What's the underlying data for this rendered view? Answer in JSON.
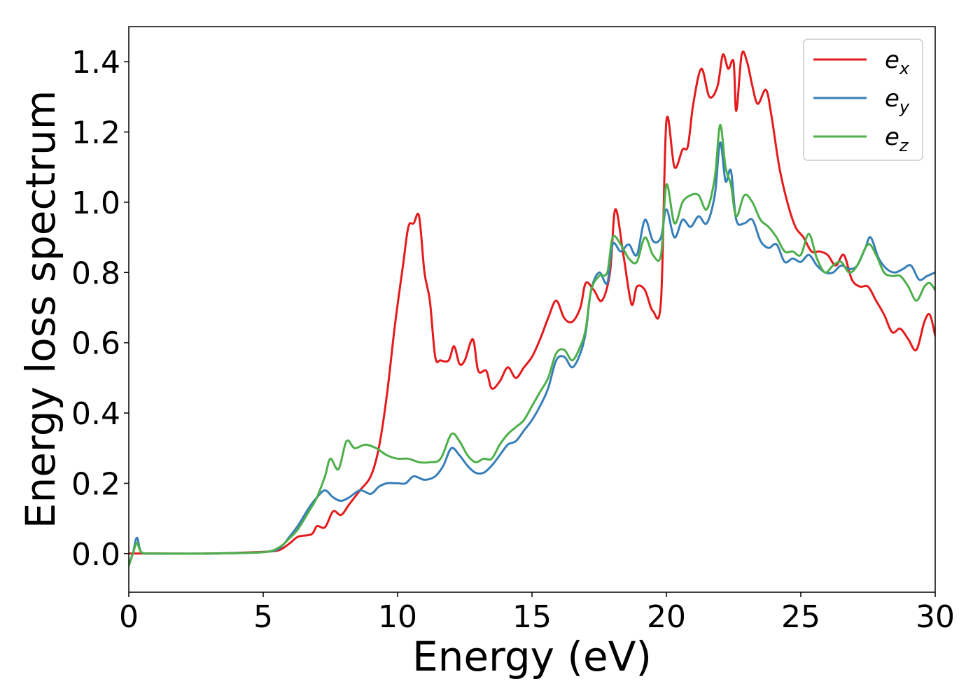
{
  "chart_data": {
    "type": "line",
    "xlabel": "Energy (eV)",
    "ylabel": "Energy loss spectrum",
    "xlim": [
      0,
      30
    ],
    "ylim": [
      -0.11,
      1.5
    ],
    "x_ticks": [
      "0",
      "5",
      "10",
      "15",
      "20",
      "25",
      "30"
    ],
    "y_ticks": [
      "0.0",
      "0.2",
      "0.4",
      "0.6",
      "0.8",
      "1.0",
      "1.2",
      "1.4"
    ],
    "x_tick_values": [
      0,
      5,
      10,
      15,
      20,
      25,
      30
    ],
    "y_tick_values": [
      0.0,
      0.2,
      0.4,
      0.6,
      0.8,
      1.0,
      1.2,
      1.4
    ],
    "grid": false,
    "legend_position": "top-right",
    "series": [
      {
        "name": "e_x",
        "label_main": "e",
        "label_sub": "x",
        "color": "#e41a1c",
        "points": [
          [
            0,
            0.0
          ],
          [
            0.3,
            0.0
          ],
          [
            1,
            0.0
          ],
          [
            3,
            0.0
          ],
          [
            5,
            0.005
          ],
          [
            5.6,
            0.01
          ],
          [
            6,
            0.03
          ],
          [
            6.3,
            0.048
          ],
          [
            6.8,
            0.055
          ],
          [
            7.0,
            0.078
          ],
          [
            7.3,
            0.075
          ],
          [
            7.6,
            0.12
          ],
          [
            7.9,
            0.11
          ],
          [
            8.2,
            0.14
          ],
          [
            8.6,
            0.18
          ],
          [
            9.0,
            0.22
          ],
          [
            9.3,
            0.3
          ],
          [
            9.6,
            0.45
          ],
          [
            9.9,
            0.65
          ],
          [
            10.2,
            0.82
          ],
          [
            10.4,
            0.93
          ],
          [
            10.6,
            0.94
          ],
          [
            10.8,
            0.96
          ],
          [
            11.0,
            0.8
          ],
          [
            11.2,
            0.72
          ],
          [
            11.4,
            0.56
          ],
          [
            11.6,
            0.55
          ],
          [
            11.9,
            0.55
          ],
          [
            12.1,
            0.59
          ],
          [
            12.3,
            0.54
          ],
          [
            12.5,
            0.55
          ],
          [
            12.8,
            0.61
          ],
          [
            13.0,
            0.52
          ],
          [
            13.3,
            0.52
          ],
          [
            13.5,
            0.47
          ],
          [
            13.8,
            0.49
          ],
          [
            14.1,
            0.53
          ],
          [
            14.4,
            0.5
          ],
          [
            14.7,
            0.53
          ],
          [
            15.0,
            0.56
          ],
          [
            15.3,
            0.61
          ],
          [
            15.6,
            0.67
          ],
          [
            15.9,
            0.72
          ],
          [
            16.2,
            0.67
          ],
          [
            16.5,
            0.66
          ],
          [
            16.8,
            0.7
          ],
          [
            17.0,
            0.77
          ],
          [
            17.3,
            0.75
          ],
          [
            17.6,
            0.72
          ],
          [
            17.9,
            0.8
          ],
          [
            18.1,
            0.98
          ],
          [
            18.4,
            0.85
          ],
          [
            18.7,
            0.71
          ],
          [
            18.9,
            0.76
          ],
          [
            19.2,
            0.75
          ],
          [
            19.5,
            0.69
          ],
          [
            19.8,
            0.72
          ],
          [
            20.0,
            1.23
          ],
          [
            20.3,
            1.1
          ],
          [
            20.6,
            1.15
          ],
          [
            20.8,
            1.16
          ],
          [
            21.0,
            1.28
          ],
          [
            21.3,
            1.38
          ],
          [
            21.6,
            1.3
          ],
          [
            21.9,
            1.33
          ],
          [
            22.1,
            1.42
          ],
          [
            22.3,
            1.38
          ],
          [
            22.5,
            1.4
          ],
          [
            22.6,
            1.26
          ],
          [
            22.8,
            1.42
          ],
          [
            23.0,
            1.4
          ],
          [
            23.2,
            1.33
          ],
          [
            23.4,
            1.28
          ],
          [
            23.7,
            1.32
          ],
          [
            23.9,
            1.25
          ],
          [
            24.2,
            1.1
          ],
          [
            24.5,
            1.0
          ],
          [
            24.8,
            0.93
          ],
          [
            25.1,
            0.9
          ],
          [
            25.4,
            0.86
          ],
          [
            25.7,
            0.86
          ],
          [
            26.0,
            0.85
          ],
          [
            26.3,
            0.82
          ],
          [
            26.6,
            0.85
          ],
          [
            26.9,
            0.78
          ],
          [
            27.2,
            0.76
          ],
          [
            27.5,
            0.76
          ],
          [
            27.8,
            0.72
          ],
          [
            28.1,
            0.68
          ],
          [
            28.4,
            0.63
          ],
          [
            28.7,
            0.64
          ],
          [
            29.0,
            0.61
          ],
          [
            29.3,
            0.58
          ],
          [
            29.6,
            0.66
          ],
          [
            29.8,
            0.68
          ],
          [
            30.0,
            0.62
          ]
        ]
      },
      {
        "name": "e_y",
        "label_main": "e",
        "label_sub": "y",
        "color": "#377eb8",
        "points": [
          [
            0,
            -0.03
          ],
          [
            0.15,
            0.0
          ],
          [
            0.3,
            0.045
          ],
          [
            0.45,
            0.005
          ],
          [
            0.7,
            0.0
          ],
          [
            1,
            0.0
          ],
          [
            3,
            0.0
          ],
          [
            5,
            0.004
          ],
          [
            5.6,
            0.015
          ],
          [
            6,
            0.05
          ],
          [
            6.3,
            0.08
          ],
          [
            6.7,
            0.13
          ],
          [
            7.0,
            0.16
          ],
          [
            7.3,
            0.18
          ],
          [
            7.6,
            0.16
          ],
          [
            7.9,
            0.15
          ],
          [
            8.2,
            0.16
          ],
          [
            8.6,
            0.18
          ],
          [
            9.0,
            0.17
          ],
          [
            9.3,
            0.19
          ],
          [
            9.6,
            0.2
          ],
          [
            10.0,
            0.2
          ],
          [
            10.3,
            0.2
          ],
          [
            10.6,
            0.22
          ],
          [
            11.0,
            0.21
          ],
          [
            11.4,
            0.22
          ],
          [
            11.7,
            0.25
          ],
          [
            12.0,
            0.3
          ],
          [
            12.3,
            0.28
          ],
          [
            12.6,
            0.25
          ],
          [
            12.9,
            0.23
          ],
          [
            13.2,
            0.23
          ],
          [
            13.5,
            0.25
          ],
          [
            13.8,
            0.28
          ],
          [
            14.1,
            0.31
          ],
          [
            14.4,
            0.32
          ],
          [
            14.7,
            0.35
          ],
          [
            15.0,
            0.38
          ],
          [
            15.3,
            0.42
          ],
          [
            15.6,
            0.47
          ],
          [
            15.9,
            0.55
          ],
          [
            16.2,
            0.56
          ],
          [
            16.5,
            0.53
          ],
          [
            16.8,
            0.57
          ],
          [
            17.0,
            0.63
          ],
          [
            17.2,
            0.75
          ],
          [
            17.5,
            0.8
          ],
          [
            17.8,
            0.77
          ],
          [
            18.0,
            0.88
          ],
          [
            18.3,
            0.86
          ],
          [
            18.6,
            0.88
          ],
          [
            18.9,
            0.85
          ],
          [
            19.2,
            0.95
          ],
          [
            19.5,
            0.89
          ],
          [
            19.8,
            0.9
          ],
          [
            20.0,
            0.98
          ],
          [
            20.3,
            0.9
          ],
          [
            20.6,
            0.95
          ],
          [
            20.9,
            0.93
          ],
          [
            21.2,
            0.96
          ],
          [
            21.5,
            0.94
          ],
          [
            21.8,
            1.02
          ],
          [
            22.0,
            1.17
          ],
          [
            22.2,
            1.06
          ],
          [
            22.4,
            1.09
          ],
          [
            22.6,
            0.95
          ],
          [
            22.9,
            0.94
          ],
          [
            23.2,
            0.95
          ],
          [
            23.5,
            0.89
          ],
          [
            23.8,
            0.87
          ],
          [
            24.1,
            0.88
          ],
          [
            24.4,
            0.83
          ],
          [
            24.7,
            0.84
          ],
          [
            25.0,
            0.83
          ],
          [
            25.3,
            0.85
          ],
          [
            25.6,
            0.82
          ],
          [
            25.9,
            0.8
          ],
          [
            26.2,
            0.8
          ],
          [
            26.5,
            0.82
          ],
          [
            26.8,
            0.81
          ],
          [
            27.1,
            0.82
          ],
          [
            27.4,
            0.87
          ],
          [
            27.6,
            0.9
          ],
          [
            27.9,
            0.84
          ],
          [
            28.2,
            0.81
          ],
          [
            28.5,
            0.8
          ],
          [
            28.8,
            0.81
          ],
          [
            29.1,
            0.82
          ],
          [
            29.4,
            0.78
          ],
          [
            29.7,
            0.79
          ],
          [
            30.0,
            0.8
          ]
        ]
      },
      {
        "name": "e_z",
        "label_main": "e",
        "label_sub": "z",
        "color": "#4daf4a",
        "points": [
          [
            0,
            -0.035
          ],
          [
            0.15,
            0.0
          ],
          [
            0.3,
            0.03
          ],
          [
            0.45,
            0.005
          ],
          [
            0.7,
            0.0
          ],
          [
            1,
            0.0
          ],
          [
            3,
            0.0
          ],
          [
            5,
            0.004
          ],
          [
            5.6,
            0.018
          ],
          [
            6,
            0.045
          ],
          [
            6.3,
            0.07
          ],
          [
            6.7,
            0.12
          ],
          [
            7.0,
            0.16
          ],
          [
            7.3,
            0.22
          ],
          [
            7.5,
            0.27
          ],
          [
            7.8,
            0.24
          ],
          [
            8.1,
            0.32
          ],
          [
            8.4,
            0.3
          ],
          [
            8.8,
            0.31
          ],
          [
            9.2,
            0.3
          ],
          [
            9.6,
            0.28
          ],
          [
            10.0,
            0.27
          ],
          [
            10.4,
            0.27
          ],
          [
            10.8,
            0.26
          ],
          [
            11.2,
            0.26
          ],
          [
            11.6,
            0.27
          ],
          [
            12.0,
            0.34
          ],
          [
            12.3,
            0.32
          ],
          [
            12.6,
            0.28
          ],
          [
            12.9,
            0.26
          ],
          [
            13.2,
            0.27
          ],
          [
            13.5,
            0.27
          ],
          [
            13.8,
            0.31
          ],
          [
            14.1,
            0.34
          ],
          [
            14.4,
            0.36
          ],
          [
            14.7,
            0.38
          ],
          [
            15.0,
            0.42
          ],
          [
            15.3,
            0.46
          ],
          [
            15.6,
            0.5
          ],
          [
            15.9,
            0.57
          ],
          [
            16.2,
            0.58
          ],
          [
            16.5,
            0.55
          ],
          [
            16.8,
            0.59
          ],
          [
            17.0,
            0.64
          ],
          [
            17.2,
            0.75
          ],
          [
            17.5,
            0.79
          ],
          [
            17.8,
            0.8
          ],
          [
            18.0,
            0.9
          ],
          [
            18.3,
            0.88
          ],
          [
            18.6,
            0.84
          ],
          [
            18.9,
            0.83
          ],
          [
            19.2,
            0.9
          ],
          [
            19.5,
            0.85
          ],
          [
            19.8,
            0.85
          ],
          [
            20.0,
            1.05
          ],
          [
            20.3,
            0.94
          ],
          [
            20.6,
            1.0
          ],
          [
            20.9,
            1.02
          ],
          [
            21.2,
            1.02
          ],
          [
            21.5,
            0.98
          ],
          [
            21.8,
            1.07
          ],
          [
            22.0,
            1.22
          ],
          [
            22.2,
            1.1
          ],
          [
            22.4,
            1.05
          ],
          [
            22.6,
            0.96
          ],
          [
            22.9,
            1.02
          ],
          [
            23.2,
            1.0
          ],
          [
            23.5,
            0.95
          ],
          [
            23.8,
            0.93
          ],
          [
            24.1,
            0.9
          ],
          [
            24.4,
            0.86
          ],
          [
            24.7,
            0.86
          ],
          [
            25.0,
            0.85
          ],
          [
            25.3,
            0.91
          ],
          [
            25.6,
            0.84
          ],
          [
            25.9,
            0.8
          ],
          [
            26.2,
            0.82
          ],
          [
            26.5,
            0.83
          ],
          [
            26.8,
            0.8
          ],
          [
            27.1,
            0.82
          ],
          [
            27.5,
            0.88
          ],
          [
            27.8,
            0.85
          ],
          [
            28.1,
            0.8
          ],
          [
            28.4,
            0.79
          ],
          [
            28.7,
            0.79
          ],
          [
            29.0,
            0.76
          ],
          [
            29.3,
            0.72
          ],
          [
            29.6,
            0.76
          ],
          [
            29.8,
            0.77
          ],
          [
            30.0,
            0.75
          ]
        ]
      }
    ]
  }
}
